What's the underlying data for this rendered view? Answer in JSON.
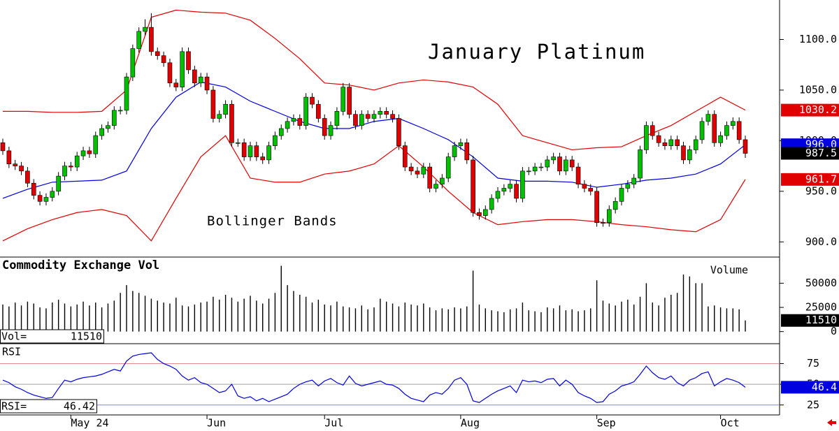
{
  "chart_data": {
    "type": "candlestick",
    "title": "January Platinum",
    "annotation": "Bollinger Bands",
    "categories": [
      null,
      null,
      null,
      null,
      null,
      null,
      null,
      null,
      null,
      null,
      null,
      "May 24",
      null,
      null,
      null,
      null,
      null,
      null,
      null,
      null,
      null,
      null,
      null,
      null,
      null,
      null,
      null,
      null,
      null,
      null,
      null,
      null,
      null,
      "Jun",
      null,
      null,
      null,
      null,
      null,
      null,
      null,
      null,
      null,
      null,
      null,
      null,
      null,
      null,
      null,
      null,
      null,
      null,
      "Jul",
      null,
      null,
      null,
      null,
      null,
      null,
      null,
      null,
      null,
      null,
      null,
      null,
      null,
      null,
      null,
      null,
      null,
      null,
      null,
      null,
      null,
      "Aug",
      null,
      null,
      null,
      null,
      null,
      null,
      null,
      null,
      null,
      null,
      null,
      null,
      null,
      null,
      null,
      null,
      null,
      null,
      null,
      null,
      null,
      "Sep",
      null,
      null,
      null,
      null,
      null,
      null,
      null,
      null,
      null,
      null,
      null,
      null,
      null,
      null,
      null,
      null,
      null,
      null,
      null,
      "Oct",
      null,
      null,
      null,
      null
    ],
    "open": [
      998,
      990,
      977,
      975,
      970,
      958,
      946,
      940,
      944,
      950,
      965,
      975,
      974,
      985,
      990,
      987,
      1005,
      1012,
      1015,
      1030,
      1030,
      1063,
      1091,
      1108,
      1112,
      1088,
      1084,
      1077,
      1057,
      1053,
      1088,
      1070,
      1057,
      1063,
      1050,
      1022,
      1026,
      1036,
      998,
      998,
      984,
      995,
      984,
      981,
      995,
      1005,
      1012,
      1019,
      1022,
      1015,
      1043,
      1036,
      1022,
      1005,
      1015,
      1029,
      1053,
      1026,
      1015,
      1026,
      1022,
      1026,
      1029,
      1026,
      1022,
      995,
      974,
      970,
      967,
      974,
      953,
      957,
      963,
      984,
      995,
      998,
      981,
      929,
      926,
      932,
      943,
      950,
      953,
      957,
      943,
      970,
      970,
      974,
      974,
      981,
      984,
      970,
      981,
      974,
      957,
      953,
      950,
      919,
      919,
      932,
      940,
      953,
      957,
      963,
      991,
      1015,
      1005,
      998,
      995,
      1001,
      995,
      981,
      991,
      1001,
      1019,
      1026,
      998,
      1005,
      1015,
      1019,
      1001
    ],
    "high": [
      1002,
      994,
      981,
      979,
      974,
      962,
      950,
      948,
      954,
      969,
      979,
      979,
      989,
      994,
      994,
      1009,
      1016,
      1019,
      1034,
      1034,
      1067,
      1095,
      1112,
      1120,
      1126,
      1092,
      1088,
      1081,
      1061,
      1092,
      1092,
      1074,
      1067,
      1067,
      1054,
      1030,
      1040,
      1040,
      1002,
      1002,
      999,
      999,
      988,
      999,
      1009,
      1016,
      1023,
      1026,
      1026,
      1047,
      1047,
      1040,
      1026,
      1019,
      1033,
      1057,
      1057,
      1030,
      1030,
      1030,
      1030,
      1033,
      1033,
      1030,
      1026,
      999,
      978,
      974,
      978,
      978,
      961,
      967,
      988,
      999,
      1002,
      1002,
      985,
      933,
      936,
      947,
      954,
      957,
      961,
      961,
      974,
      974,
      978,
      978,
      985,
      988,
      988,
      985,
      985,
      978,
      961,
      957,
      954,
      923,
      936,
      944,
      957,
      961,
      967,
      995,
      1019,
      1019,
      1009,
      1002,
      1005,
      1005,
      999,
      995,
      1005,
      1023,
      1030,
      1030,
      1009,
      1019,
      1023,
      1023,
      1005
    ],
    "low": [
      986,
      973,
      971,
      966,
      954,
      942,
      936,
      936,
      940,
      946,
      961,
      970,
      970,
      981,
      983,
      983,
      1001,
      1008,
      1011,
      1026,
      1026,
      1059,
      1087,
      1104,
      1084,
      1080,
      1073,
      1053,
      1049,
      1049,
      1066,
      1053,
      1053,
      1046,
      1018,
      1018,
      1022,
      994,
      994,
      980,
      980,
      980,
      977,
      977,
      991,
      1001,
      1008,
      1015,
      1011,
      1011,
      1032,
      1018,
      1001,
      1001,
      1011,
      1025,
      1022,
      1011,
      1011,
      1018,
      1018,
      1022,
      1022,
      1018,
      991,
      970,
      966,
      963,
      963,
      949,
      949,
      953,
      959,
      980,
      991,
      977,
      925,
      922,
      922,
      928,
      939,
      946,
      949,
      939,
      939,
      966,
      966,
      970,
      970,
      977,
      966,
      966,
      970,
      953,
      949,
      946,
      915,
      915,
      915,
      928,
      936,
      949,
      953,
      959,
      987,
      1001,
      994,
      991,
      991,
      991,
      977,
      977,
      987,
      997,
      1015,
      994,
      994,
      1001,
      1011,
      997,
      983
    ],
    "close": [
      990,
      977,
      975,
      970,
      958,
      946,
      940,
      944,
      950,
      965,
      975,
      974,
      985,
      990,
      987,
      1005,
      1012,
      1015,
      1030,
      1030,
      1063,
      1091,
      1108,
      1112,
      1088,
      1084,
      1077,
      1057,
      1053,
      1088,
      1070,
      1057,
      1063,
      1050,
      1022,
      1026,
      1036,
      998,
      998,
      984,
      995,
      984,
      981,
      995,
      1005,
      1012,
      1019,
      1022,
      1015,
      1043,
      1036,
      1022,
      1005,
      1015,
      1029,
      1053,
      1026,
      1015,
      1026,
      1022,
      1026,
      1029,
      1026,
      1022,
      995,
      974,
      970,
      967,
      974,
      953,
      957,
      963,
      984,
      995,
      998,
      981,
      929,
      926,
      932,
      943,
      950,
      953,
      957,
      943,
      970,
      970,
      974,
      974,
      981,
      984,
      970,
      981,
      974,
      957,
      953,
      950,
      919,
      919,
      932,
      940,
      953,
      957,
      963,
      991,
      1015,
      1005,
      998,
      995,
      1001,
      995,
      981,
      991,
      1001,
      1019,
      1026,
      998,
      1005,
      1015,
      1019,
      1001,
      987.5
    ],
    "up_color": "#00c000",
    "down_color": "#e00000",
    "readout_color": "#000000",
    "ylim": [
      885,
      1139
    ],
    "yticks": [
      {
        "value": 900,
        "label": "900.0"
      },
      {
        "value": 950,
        "label": "950.0"
      },
      {
        "value": 1000,
        "label": "1000.0"
      },
      {
        "value": 1050,
        "label": "1050.0"
      },
      {
        "value": 1100,
        "label": "1100.0"
      }
    ],
    "bands": {
      "x": [
        0,
        4,
        8,
        12,
        16,
        20,
        24,
        28,
        32,
        36,
        40,
        44,
        48,
        52,
        56,
        60,
        64,
        68,
        72,
        76,
        80,
        84,
        88,
        92,
        96,
        100,
        104,
        108,
        112,
        116,
        120
      ],
      "upper": {
        "color": "#e00000",
        "values": [
          1029,
          1029,
          1028,
          1028,
          1029,
          1050,
          1122,
          1129,
          1127,
          1126,
          1119,
          1101,
          1081,
          1057,
          1055,
          1050,
          1057,
          1060,
          1058,
          1053,
          1036,
          1005,
          998,
          991,
          993,
          994,
          1005,
          1015,
          1029,
          1043,
          1030.2
        ]
      },
      "middle": {
        "color": "#0000e0",
        "values": [
          943,
          952,
          959,
          960,
          961,
          970,
          1012,
          1043,
          1058,
          1053,
          1039,
          1029,
          1019,
          1012,
          1012,
          1019,
          1022,
          1012,
          1001,
          984,
          963,
          960,
          960,
          959,
          954,
          957,
          961,
          963,
          967,
          977,
          996
        ],
        "last_value_label": "996.0"
      },
      "lower": {
        "color": "#e00000",
        "values": [
          901,
          913,
          922,
          929,
          932,
          926,
          901,
          943,
          984,
          1005,
          963,
          959,
          959,
          967,
          970,
          977,
          995,
          974,
          950,
          929,
          917,
          920,
          922,
          922,
          920,
          917,
          915,
          912,
          910,
          922,
          961.7
        ]
      }
    },
    "volume": {
      "title": "Commodity Exchange Vol",
      "label": "Volume",
      "readout_label": "Vol=",
      "color": "#000000",
      "ylim": [
        -12500,
        77000
      ],
      "yticks": [
        0,
        25000,
        50000
      ],
      "values": [
        28000,
        26000,
        30000,
        27000,
        31000,
        29000,
        25000,
        24000,
        30000,
        33000,
        29000,
        26000,
        28000,
        31000,
        27000,
        30000,
        25000,
        29000,
        32000,
        40000,
        48000,
        42000,
        40000,
        37000,
        34000,
        32000,
        30000,
        29000,
        35000,
        27000,
        26000,
        28000,
        30000,
        31000,
        36000,
        33000,
        38000,
        35000,
        31000,
        34000,
        37000,
        32000,
        29000,
        34000,
        40000,
        68000,
        48000,
        42000,
        38000,
        36000,
        30000,
        33000,
        28000,
        27000,
        31000,
        26000,
        25000,
        24000,
        27000,
        23000,
        25000,
        34000,
        31000,
        29000,
        26000,
        30000,
        28000,
        27000,
        29000,
        25000,
        22000,
        24000,
        23000,
        25000,
        24000,
        26000,
        63000,
        28000,
        24000,
        22000,
        21000,
        20000,
        23000,
        24000,
        30000,
        22000,
        21000,
        20000,
        25000,
        24000,
        27000,
        22000,
        23000,
        21000,
        22000,
        24000,
        53000,
        32000,
        29000,
        27000,
        31000,
        33000,
        28000,
        36000,
        50000,
        30000,
        27000,
        35000,
        38000,
        40000,
        59000,
        57000,
        50000,
        50000,
        26000,
        27000,
        25000,
        24000,
        24000,
        23000,
        11510
      ]
    },
    "rsi": {
      "title": "RSI",
      "readout_label": "RSI=",
      "color": "#0000e0",
      "ylim": [
        13,
        99
      ],
      "yticks": [
        25,
        50,
        75
      ],
      "ytick_line_colors": [
        "#8080ff",
        "#a0a0a0",
        "#e09090"
      ],
      "values": [
        55,
        52,
        47,
        44,
        40,
        37,
        35,
        33,
        34,
        45,
        55,
        53,
        56,
        58,
        59,
        60,
        62,
        65,
        68,
        66,
        78,
        84,
        86,
        87,
        88,
        80,
        75,
        72,
        68,
        60,
        55,
        58,
        52,
        50,
        45,
        40,
        42,
        50,
        36,
        33,
        35,
        30,
        33,
        29,
        32,
        35,
        38,
        45,
        50,
        53,
        55,
        48,
        54,
        57,
        52,
        49,
        60,
        51,
        48,
        50,
        52,
        54,
        50,
        49,
        45,
        38,
        33,
        31,
        29,
        37,
        40,
        38,
        45,
        55,
        58,
        50,
        30,
        28,
        33,
        38,
        42,
        45,
        48,
        40,
        55,
        53,
        54,
        52,
        56,
        57,
        48,
        55,
        50,
        40,
        36,
        33,
        28,
        29,
        38,
        42,
        48,
        50,
        53,
        62,
        72,
        64,
        58,
        56,
        60,
        52,
        48,
        55,
        58,
        63,
        65,
        48,
        53,
        57,
        55,
        52,
        46.42
      ],
      "last_value_label": "46.4"
    }
  }
}
